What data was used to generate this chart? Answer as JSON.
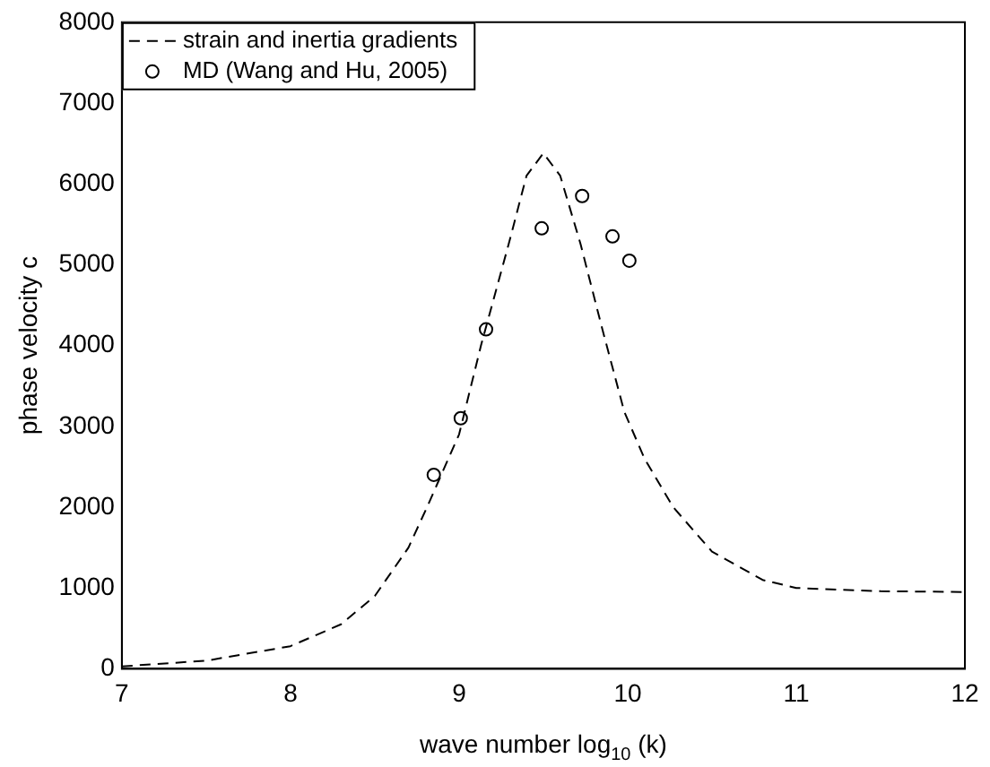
{
  "chart_data": {
    "type": "line",
    "xlabel": "wave number log$_{10}$ (k)",
    "ylabel": "phase velocity c",
    "xlim": [
      7,
      12
    ],
    "ylim": [
      0,
      8000
    ],
    "xticks": [
      7,
      8,
      9,
      10,
      11,
      12
    ],
    "yticks": [
      0,
      1000,
      2000,
      3000,
      4000,
      5000,
      6000,
      7000,
      8000
    ],
    "legend": "top left",
    "grid": false,
    "series": [
      {
        "name": "strain and inertia gradients",
        "color": "#000000",
        "line_style": "dashed",
        "marker": "none",
        "x": [
          7,
          7.5,
          8,
          8.3,
          8.5,
          8.7,
          8.81,
          9,
          9.13,
          9.3,
          9.4,
          9.5,
          9.6,
          9.72,
          9.85,
          9.98,
          10.1,
          10.27,
          10.5,
          10.8,
          11,
          11.5,
          12
        ],
        "values": [
          30,
          100,
          280,
          550,
          900,
          1500,
          2000,
          2900,
          4000,
          5300,
          6100,
          6380,
          6100,
          5260,
          4200,
          3180,
          2600,
          2000,
          1450,
          1100,
          1000,
          960,
          950
        ]
      },
      {
        "name": "MD (Wang and Hu, 2005)",
        "type": "scatter",
        "color": "#000000",
        "marker": "circle",
        "x": [
          8.85,
          9.01,
          9.16,
          9.49,
          9.73,
          9.91,
          10.01
        ],
        "values": [
          2400,
          3100,
          4200,
          5450,
          5850,
          5350,
          5050
        ]
      }
    ]
  }
}
